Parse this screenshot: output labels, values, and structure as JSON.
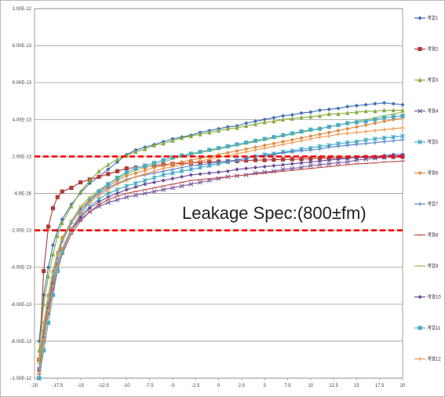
{
  "chart_data": {
    "type": "line",
    "title": "",
    "xlabel": "",
    "ylabel": "",
    "xlim": [
      -20,
      20
    ],
    "ylim": [
      -1e-12,
      1e-12
    ],
    "x_tick_values": [
      -20,
      -17.5,
      -15,
      -12.5,
      -10,
      -7.5,
      -5,
      -2.5,
      0,
      2.5,
      5,
      7.5,
      10,
      12.5,
      15,
      17.5,
      20
    ],
    "x_tick_labels": [
      "-20",
      "-17.5",
      "-15",
      "-12.5",
      "-10",
      "-7.5",
      "-5",
      "-2.5",
      "0",
      "2.5",
      "5",
      "7.5",
      "10",
      "12.5",
      "15",
      "17.5",
      "20"
    ],
    "y_tick_values": [
      1e-12,
      8e-13,
      6e-13,
      4e-13,
      2e-13,
      -6.9e-26,
      -2e-13,
      -4e-13,
      -6e-13,
      -8e-13,
      -1e-12
    ],
    "y_tick_labels": [
      "1.00E-12",
      "8.00E-13",
      "6.00E-13",
      "4.00E-13",
      "2.00E-13",
      "-6.9E-26",
      "-2.00E-13",
      "-4.00E-13",
      "-6.00E-13",
      "-8.00E-13",
      "-1.00E-12"
    ],
    "grid": true,
    "legend_position": "right",
    "reference_lines": [
      {
        "y": 2e-13,
        "color": "#ff0000",
        "style": "dashed"
      },
      {
        "y": -2e-13,
        "color": "#ff0000",
        "style": "dashed"
      }
    ],
    "annotation": "Leakage Spec:(800±fm)",
    "x": [
      -19.5,
      -19,
      -18.5,
      -18,
      -17.5,
      -17,
      -16,
      -15,
      -14,
      -13,
      -12,
      -11,
      -10,
      -9,
      -8,
      -7,
      -6,
      -5,
      -4,
      -3,
      -2,
      -1,
      0,
      1,
      2,
      3,
      4,
      5,
      6,
      7,
      8,
      9,
      10,
      11,
      12,
      13,
      14,
      15,
      16,
      17,
      18,
      19,
      20
    ],
    "series": [
      {
        "name": "계열1",
        "color": "#3d6fb5",
        "marker": "diamond",
        "values": [
          -8e-13,
          -5.5e-13,
          -4e-13,
          -2.8e-13,
          -2e-13,
          -1.4e-13,
          -6e-14,
          2e-15,
          5.5e-14,
          9e-14,
          1.3e-13,
          1.7e-13,
          2.1e-13,
          2.35e-13,
          2.5e-13,
          2.65e-13,
          2.8e-13,
          2.95e-13,
          3.05e-13,
          3.15e-13,
          3.3e-13,
          3.4e-13,
          3.5e-13,
          3.6e-13,
          3.65e-13,
          3.8e-13,
          3.9e-13,
          4e-13,
          4.1e-13,
          4.2e-13,
          4.25e-13,
          4.35e-13,
          4.4e-13,
          4.5e-13,
          4.55e-13,
          4.6e-13,
          4.7e-13,
          4.75e-13,
          4.8e-13,
          4.85e-13,
          4.9e-13,
          4.85e-13,
          4.8e-13
        ]
      },
      {
        "name": "계열2",
        "color": "#b03a37",
        "marker": "square",
        "values": [
          -9e-13,
          -4.2e-13,
          -1.8e-13,
          -8e-14,
          -2e-14,
          1e-14,
          3e-14,
          6e-14,
          7.5e-14,
          9e-14,
          1.05e-13,
          1.2e-13,
          1.35e-13,
          1.4e-13,
          1.45e-13,
          1.5e-13,
          1.55e-13,
          1.6e-13,
          1.62e-13,
          1.65e-13,
          1.68e-13,
          1.7e-13,
          1.72e-13,
          1.74e-13,
          1.75e-13,
          1.78e-13,
          1.8e-13,
          1.8e-13,
          1.82e-13,
          1.84e-13,
          1.85e-13,
          1.86e-13,
          1.88e-13,
          1.9e-13,
          1.9e-13,
          1.92e-13,
          1.93e-13,
          1.94e-13,
          1.95e-13,
          1.95e-13,
          1.96e-13,
          1.97e-13,
          1.98e-13
        ]
      },
      {
        "name": "계열3",
        "color": "#8aab3c",
        "marker": "triangle",
        "values": [
          -8.5e-13,
          -6e-13,
          -4.5e-13,
          -3.3e-13,
          -2.3e-13,
          -1.6e-13,
          -7e-14,
          1e-14,
          7e-14,
          1.2e-13,
          1.55e-13,
          1.85e-13,
          2.05e-13,
          2.25e-13,
          2.4e-13,
          2.6e-13,
          2.7e-13,
          2.85e-13,
          3e-13,
          3.1e-13,
          3.2e-13,
          3.3e-13,
          3.4e-13,
          3.5e-13,
          3.55e-13,
          3.65e-13,
          3.75e-13,
          3.85e-13,
          3.9e-13,
          4e-13,
          4.05e-13,
          4.1e-13,
          4.15e-13,
          4.2e-13,
          4.3e-13,
          4.3e-13,
          4.35e-13,
          4.4e-13,
          4.45e-13,
          4.45e-13,
          4.5e-13,
          4.5e-13,
          4.5e-13
        ]
      },
      {
        "name": "계열4",
        "color": "#7a5ca1",
        "marker": "x",
        "values": [
          -9.5e-13,
          -7.5e-13,
          -6e-13,
          -4.8e-13,
          -3.8e-13,
          -3e-13,
          -2e-13,
          -1.4e-13,
          -1e-13,
          -7e-14,
          -5e-14,
          -3.5e-14,
          -2e-14,
          -1e-14,
          0.0,
          1e-14,
          2e-14,
          3e-14,
          4e-14,
          5e-14,
          6e-14,
          7e-14,
          8e-14,
          9e-14,
          9.5e-14,
          1e-13,
          1.1e-13,
          1.15e-13,
          1.2e-13,
          1.3e-13,
          1.35e-13,
          1.4e-13,
          1.5e-13,
          1.55e-13,
          1.6e-13,
          1.65e-13,
          1.7e-13,
          1.8e-13,
          1.85e-13,
          1.9e-13,
          1.95e-13,
          2e-13,
          2.05e-13
        ]
      },
      {
        "name": "계열5",
        "color": "#3fa9c4",
        "marker": "star",
        "values": [
          -1e-12,
          -8e-13,
          -6.5e-13,
          -5e-13,
          -4e-13,
          -3e-13,
          -1.9e-13,
          -1.2e-13,
          -7e-14,
          -3e-14,
          0.0,
          2e-14,
          4e-14,
          5.5e-14,
          7e-14,
          8.5e-14,
          1e-13,
          1.1e-13,
          1.2e-13,
          1.3e-13,
          1.4e-13,
          1.5e-13,
          1.6e-13,
          1.7e-13,
          1.8e-13,
          1.9e-13,
          2e-13,
          2.1e-13,
          2.15e-13,
          2.25e-13,
          2.3e-13,
          2.4e-13,
          2.45e-13,
          2.55e-13,
          2.6e-13,
          2.7e-13,
          2.75e-13,
          2.8e-13,
          2.9e-13,
          2.95e-13,
          3e-13,
          3.05e-13,
          3.1e-13
        ]
      },
      {
        "name": "계열6",
        "color": "#e0893e",
        "marker": "diamond",
        "values": [
          -9e-13,
          -7e-13,
          -5.5e-13,
          -4.2e-13,
          -3.2e-13,
          -2.4e-13,
          -1.5e-13,
          -8e-14,
          -3e-14,
          1e-14,
          4e-14,
          7e-14,
          9.5e-14,
          1.1e-13,
          1.25e-13,
          1.4e-13,
          1.5e-13,
          1.6e-13,
          1.7e-13,
          1.8e-13,
          1.9e-13,
          2e-13,
          2.1e-13,
          2.2e-13,
          2.3e-13,
          2.4e-13,
          2.5e-13,
          2.6e-13,
          2.7e-13,
          2.8e-13,
          2.9e-13,
          3e-13,
          3.1e-13,
          3.2e-13,
          3.3e-13,
          3.4e-13,
          3.5e-13,
          3.6e-13,
          3.7e-13,
          3.8e-13,
          3.9e-13,
          4e-13,
          4.1e-13
        ]
      },
      {
        "name": "계열7",
        "color": "#5a7ec9",
        "marker": "plus",
        "values": [
          -9.5e-13,
          -7.5e-13,
          -6e-13,
          -4.5e-13,
          -3.5e-13,
          -2.6e-13,
          -1.6e-13,
          -9e-14,
          -4e-14,
          0.0,
          3e-14,
          5.5e-14,
          7.5e-14,
          9e-14,
          1e-13,
          1.1e-13,
          1.2e-13,
          1.3e-13,
          1.4e-13,
          1.5e-13,
          1.55e-13,
          1.6e-13,
          1.7e-13,
          1.75e-13,
          1.8e-13,
          1.9e-13,
          2e-13,
          2.05e-13,
          2.1e-13,
          2.2e-13,
          2.25e-13,
          2.3e-13,
          2.35e-13,
          2.4e-13,
          2.5e-13,
          2.55e-13,
          2.6e-13,
          2.65e-13,
          2.7e-13,
          2.75e-13,
          2.8e-13,
          2.85e-13,
          2.9e-13
        ]
      },
      {
        "name": "계열8",
        "color": "#c0504d",
        "marker": "dash",
        "values": [
          -9.8e-13,
          -8e-13,
          -6.5e-13,
          -5.2e-13,
          -4.2e-13,
          -3.3e-13,
          -2.2e-13,
          -1.5e-13,
          -1e-13,
          -6e-14,
          -3.5e-14,
          -1.5e-14,
          0.0,
          1e-14,
          2e-14,
          3e-14,
          4e-14,
          5e-14,
          6e-14,
          7e-14,
          7.5e-14,
          8e-14,
          8.5e-14,
          9e-14,
          9.5e-14,
          1e-13,
          1.05e-13,
          1.1e-13,
          1.15e-13,
          1.2e-13,
          1.25e-13,
          1.3e-13,
          1.35e-13,
          1.4e-13,
          1.45e-13,
          1.5e-13,
          1.55e-13,
          1.6e-13,
          1.62e-13,
          1.65e-13,
          1.7e-13,
          1.72e-13,
          1.75e-13
        ]
      },
      {
        "name": "계열9",
        "color": "#9bbb59",
        "marker": "dash",
        "values": [
          -9.2e-13,
          -7.2e-13,
          -5.6e-13,
          -4.3e-13,
          -3.3e-13,
          -2.5e-13,
          -1.5e-13,
          -7e-14,
          -2e-14,
          2e-14,
          5e-14,
          8e-14,
          1.05e-13,
          1.25e-13,
          1.4e-13,
          1.55e-13,
          1.7e-13,
          1.85e-13,
          2e-13,
          2.1e-13,
          2.2e-13,
          2.3e-13,
          2.4e-13,
          2.5e-13,
          2.6e-13,
          2.7e-13,
          2.8e-13,
          2.9e-13,
          3e-13,
          3.1e-13,
          3.2e-13,
          3.3e-13,
          3.4e-13,
          3.5e-13,
          3.6e-13,
          3.7e-13,
          3.8e-13,
          3.9e-13,
          4e-13,
          4.1e-13,
          4.2e-13,
          4.3e-13,
          4.4e-13
        ]
      },
      {
        "name": "계열10",
        "color": "#6b4c9a",
        "marker": "diamond",
        "values": [
          -9.6e-13,
          -7.8e-13,
          -6.2e-13,
          -4.9e-13,
          -3.9e-13,
          -3e-13,
          -2e-13,
          -1.3e-13,
          -8e-14,
          -4.5e-14,
          -2e-14,
          0.0,
          2e-14,
          3.5e-14,
          5e-14,
          6e-14,
          7e-14,
          8e-14,
          9e-14,
          1e-13,
          1.05e-13,
          1.1e-13,
          1.15e-13,
          1.2e-13,
          1.3e-13,
          1.35e-13,
          1.4e-13,
          1.45e-13,
          1.5e-13,
          1.55e-13,
          1.6e-13,
          1.65e-13,
          1.7e-13,
          1.75e-13,
          1.8e-13,
          1.85e-13,
          1.9e-13,
          1.95e-13,
          2e-13,
          2e-13,
          2.05e-13,
          2.1e-13,
          2.1e-13
        ]
      },
      {
        "name": "계열11",
        "color": "#4bacc6",
        "marker": "square",
        "values": [
          -1e-12,
          -8.5e-13,
          -7e-13,
          -5.5e-13,
          -4.2e-13,
          -3.2e-13,
          -2e-13,
          -1.1e-13,
          -4e-14,
          1e-14,
          5e-14,
          8.5e-14,
          1.15e-13,
          1.35e-13,
          1.5e-13,
          1.65e-13,
          1.8e-13,
          1.95e-13,
          2.05e-13,
          2.15e-13,
          2.25e-13,
          2.35e-13,
          2.45e-13,
          2.55e-13,
          2.65e-13,
          2.75e-13,
          2.85e-13,
          2.95e-13,
          3.05e-13,
          3.15e-13,
          3.25e-13,
          3.35e-13,
          3.45e-13,
          3.5e-13,
          3.6e-13,
          3.7e-13,
          3.8e-13,
          3.85e-13,
          3.9e-13,
          4e-13,
          4.1e-13,
          4.15e-13,
          4.2e-13
        ]
      },
      {
        "name": "계열12",
        "color": "#f79646",
        "marker": "plus",
        "values": [
          -9.7e-13,
          -7.9e-13,
          -6.3e-13,
          -5e-13,
          -3.9e-13,
          -3e-13,
          -1.9e-13,
          -1.1e-13,
          -5e-14,
          -1e-14,
          2e-14,
          5e-14,
          7e-14,
          9e-14,
          1.05e-13,
          1.2e-13,
          1.35e-13,
          1.45e-13,
          1.55e-13,
          1.65e-13,
          1.75e-13,
          1.85e-13,
          1.95e-13,
          2.05e-13,
          2.15e-13,
          2.25e-13,
          2.35e-13,
          2.45e-13,
          2.55e-13,
          2.65e-13,
          2.75e-13,
          2.85e-13,
          2.95e-13,
          3.05e-13,
          3.1e-13,
          3.2e-13,
          3.25e-13,
          3.3e-13,
          3.35e-13,
          3.4e-13,
          3.45e-13,
          3.5e-13,
          3.55e-13
        ]
      }
    ]
  }
}
